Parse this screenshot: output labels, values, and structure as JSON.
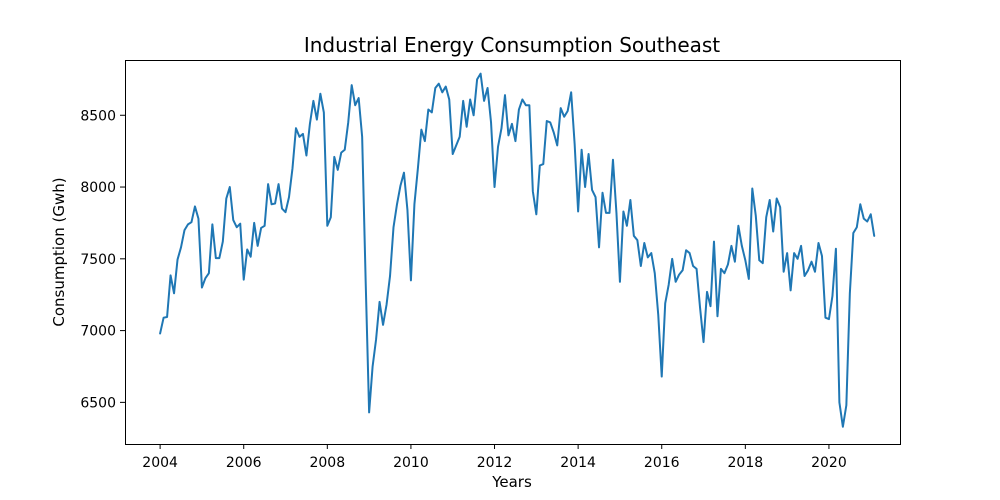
{
  "chart_data": {
    "type": "line",
    "title": "Industrial Energy Consumption Southeast",
    "xlabel": "Years",
    "ylabel": "Consumption (Gwh)",
    "xlim": [
      2003.16,
      2021.7
    ],
    "ylim": [
      6210,
      8885
    ],
    "x_ticks": [
      2004,
      2006,
      2008,
      2010,
      2012,
      2014,
      2016,
      2018,
      2020
    ],
    "y_ticks": [
      6500,
      7000,
      7500,
      8000,
      8500
    ],
    "grid": false,
    "colors": {
      "line": "#1f77b4"
    },
    "x_start": "2004-01",
    "x_step_months": 1,
    "series": [
      {
        "values": [
          6980,
          7090,
          7095,
          7385,
          7260,
          7495,
          7580,
          7700,
          7740,
          7755,
          7865,
          7780,
          7300,
          7365,
          7400,
          7740,
          7505,
          7505,
          7620,
          7920,
          8000,
          7770,
          7720,
          7745,
          7355,
          7565,
          7515,
          7750,
          7590,
          7715,
          7730,
          8020,
          7880,
          7885,
          8020,
          7850,
          7825,
          7930,
          8130,
          8410,
          8350,
          8370,
          8220,
          8440,
          8600,
          8470,
          8650,
          8520,
          7730,
          7790,
          8210,
          8120,
          8240,
          8260,
          8450,
          8710,
          8570,
          8620,
          8350,
          7350,
          6430,
          6750,
          6940,
          7200,
          7040,
          7180,
          7380,
          7720,
          7880,
          8010,
          8100,
          7840,
          7350,
          7880,
          8130,
          8400,
          8320,
          8540,
          8520,
          8690,
          8720,
          8660,
          8700,
          8610,
          8230,
          8290,
          8350,
          8600,
          8420,
          8610,
          8500,
          8750,
          8790,
          8600,
          8690,
          8450,
          8000,
          8280,
          8410,
          8640,
          8360,
          8440,
          8320,
          8540,
          8610,
          8570,
          8570,
          7970,
          7810,
          8150,
          8160,
          8460,
          8450,
          8380,
          8290,
          8550,
          8490,
          8530,
          8660,
          8300,
          7830,
          8260,
          8000,
          8230,
          7980,
          7930,
          7580,
          7960,
          7820,
          7820,
          8190,
          7820,
          7340,
          7830,
          7730,
          7910,
          7660,
          7630,
          7450,
          7610,
          7510,
          7540,
          7400,
          7110,
          6680,
          7190,
          7320,
          7500,
          7340,
          7390,
          7420,
          7560,
          7540,
          7450,
          7430,
          7160,
          6920,
          7270,
          7170,
          7620,
          7100,
          7430,
          7400,
          7460,
          7590,
          7480,
          7730,
          7590,
          7490,
          7360,
          7990,
          7800,
          7490,
          7470,
          7790,
          7910,
          7690,
          7920,
          7860,
          7410,
          7540,
          7280,
          7540,
          7500,
          7590,
          7380,
          7420,
          7480,
          7410,
          7610,
          7520,
          7090,
          7080,
          7240,
          7570,
          6500,
          6330,
          6480,
          7260,
          7680,
          7720,
          7880,
          7780,
          7760,
          7810,
          7660
        ]
      }
    ]
  }
}
